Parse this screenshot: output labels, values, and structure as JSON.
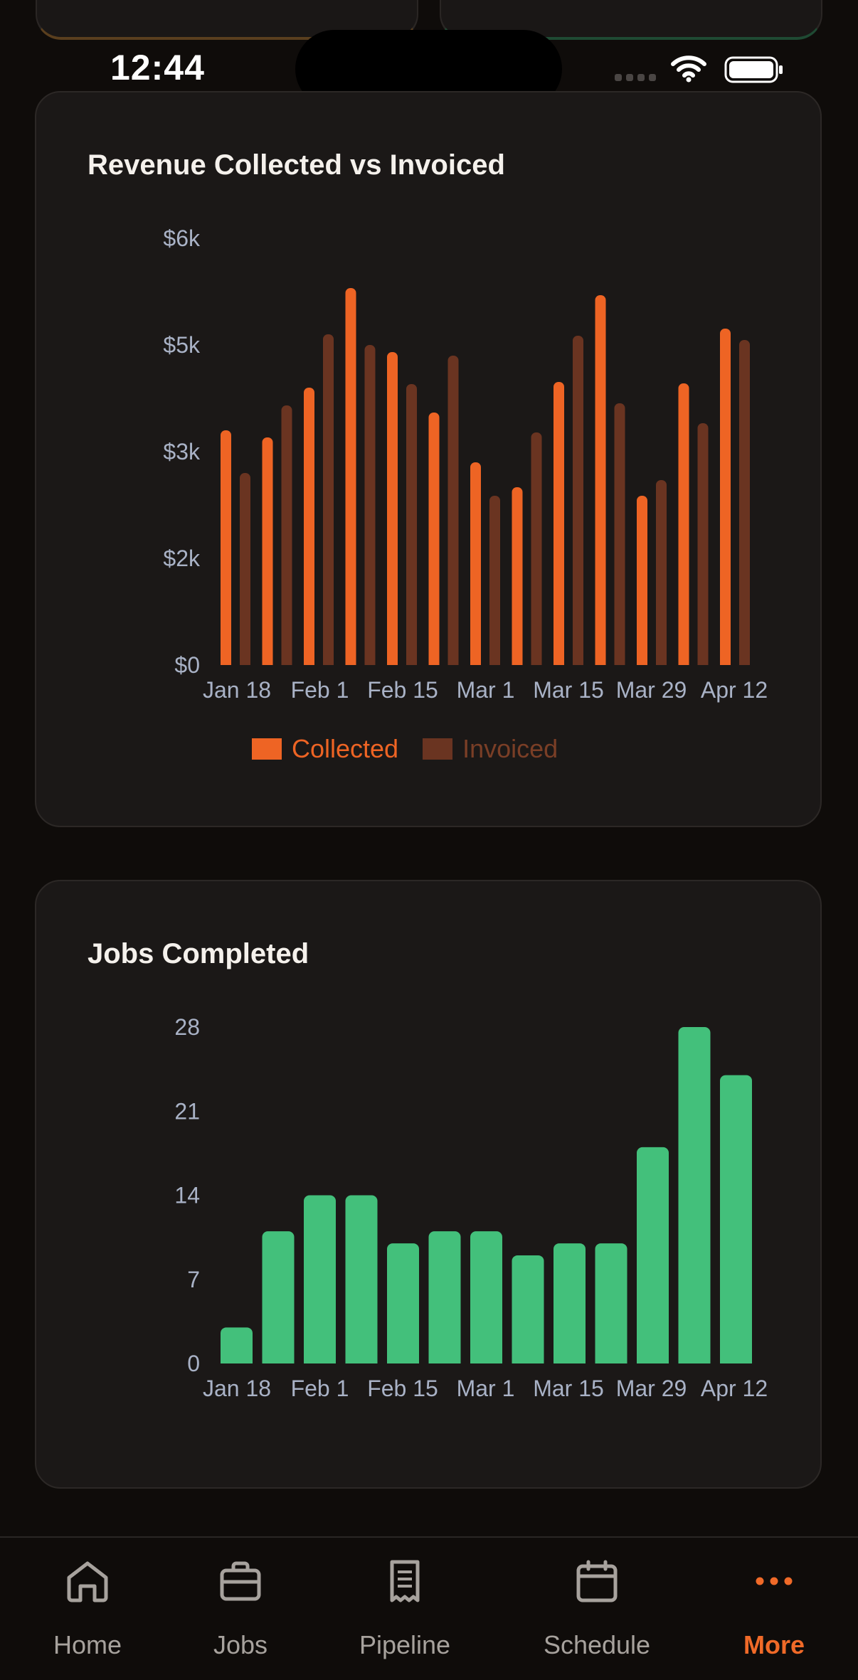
{
  "status_bar": {
    "time": "12:44"
  },
  "colors": {
    "accent": "#f06a28",
    "collected": "#ee6424",
    "invoiced": "#6a3421",
    "jobs": "#43c07b",
    "axis_text": "#a9b2c6"
  },
  "revenue_card": {
    "title": "Revenue Collected vs Invoiced",
    "legend": {
      "collected": "Collected",
      "invoiced": "Invoiced"
    }
  },
  "jobs_card": {
    "title": "Jobs Completed"
  },
  "chart_data": [
    {
      "type": "bar",
      "title": "Revenue Collected vs Invoiced",
      "y_ticks": [
        "$0",
        "$2k",
        "$3k",
        "$5k",
        "$6k"
      ],
      "x_ticks": [
        "Jan 18",
        "Feb 1",
        "Feb 15",
        "Mar 1",
        "Mar 15",
        "Mar 29",
        "Apr 12"
      ],
      "ylim": [
        0,
        6000
      ],
      "series": [
        {
          "name": "Collected",
          "color": "#ee6424",
          "values": [
            3300,
            3200,
            3900,
            5300,
            4400,
            3550,
            2850,
            2500,
            3980,
            5200,
            2380,
            3960,
            4730
          ]
        },
        {
          "name": "Invoiced",
          "color": "#6a3421",
          "values": [
            2700,
            3650,
            4650,
            4500,
            3950,
            4350,
            2380,
            3270,
            4630,
            3680,
            2600,
            3400,
            4570
          ]
        }
      ],
      "legend": "bottom-center",
      "grid": false
    },
    {
      "type": "bar",
      "title": "Jobs Completed",
      "y_ticks": [
        "0",
        "7",
        "14",
        "21",
        "28"
      ],
      "x_ticks": [
        "Jan 18",
        "Feb 1",
        "Feb 15",
        "Mar 1",
        "Mar 15",
        "Mar 29",
        "Apr 12"
      ],
      "ylim": [
        0,
        28
      ],
      "series": [
        {
          "name": "Jobs",
          "color": "#43c07b",
          "values": [
            3,
            11,
            14,
            14,
            10,
            11,
            11,
            9,
            10,
            10,
            18,
            28,
            24
          ]
        }
      ],
      "grid": false
    }
  ],
  "tabbar": {
    "items": [
      {
        "label": "Home",
        "icon": "home-icon"
      },
      {
        "label": "Jobs",
        "icon": "briefcase-icon"
      },
      {
        "label": "Pipeline",
        "icon": "receipt-icon"
      },
      {
        "label": "Schedule",
        "icon": "calendar-icon"
      },
      {
        "label": "More",
        "icon": "more-icon",
        "active": true
      }
    ]
  }
}
